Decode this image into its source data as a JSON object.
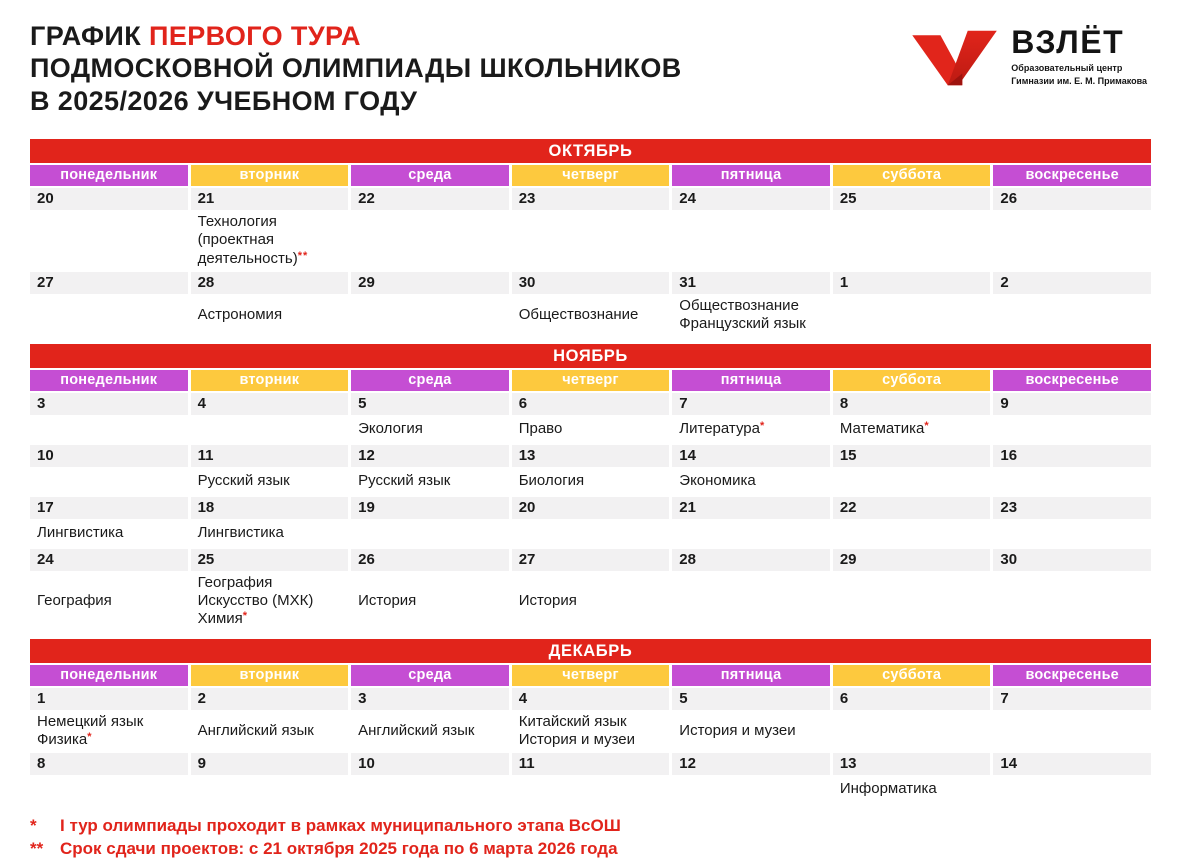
{
  "header": {
    "title_prefix": "ГРАФИК",
    "title_highlight": "ПЕРВОГО ТУРА",
    "title_line2": "ПОДМОСКОВНОЙ ОЛИМПИАДЫ ШКОЛЬНИКОВ",
    "title_line3": "В 2025/2026 УЧЕБНОМ ГОДУ"
  },
  "logo": {
    "mark_icon": "red-v-logo",
    "name": "ВЗЛЁТ",
    "subtitle_line1": "Образовательный центр",
    "subtitle_line2": "Гимназии им. Е. М. Примакова"
  },
  "colors": {
    "red": "#e1241b",
    "purple": "#c54ed3",
    "yellow": "#fdc93e",
    "grey": "#f2f1f2",
    "ink": "#1a1a1a"
  },
  "weekdays": [
    "понедельник",
    "вторник",
    "среда",
    "четверг",
    "пятница",
    "суббота",
    "воскресенье"
  ],
  "months": [
    {
      "name": "ОКТЯБРЬ",
      "weeks": [
        {
          "days": [
            {
              "date": "20",
              "subjects": []
            },
            {
              "date": "21",
              "subjects": [
                {
                  "text": "Технология (проектная деятельность)",
                  "mark": "**"
                }
              ]
            },
            {
              "date": "22",
              "subjects": []
            },
            {
              "date": "23",
              "subjects": []
            },
            {
              "date": "24",
              "subjects": []
            },
            {
              "date": "25",
              "subjects": []
            },
            {
              "date": "26",
              "subjects": []
            }
          ]
        },
        {
          "days": [
            {
              "date": "27",
              "subjects": []
            },
            {
              "date": "28",
              "subjects": [
                {
                  "text": "Астрономия"
                }
              ]
            },
            {
              "date": "29",
              "subjects": []
            },
            {
              "date": "30",
              "subjects": [
                {
                  "text": "Обществознание"
                }
              ]
            },
            {
              "date": "31",
              "subjects": [
                {
                  "text": "Обществознание"
                },
                {
                  "text": "Французский язык"
                }
              ]
            },
            {
              "date": "1",
              "subjects": []
            },
            {
              "date": "2",
              "subjects": []
            }
          ]
        }
      ]
    },
    {
      "name": "НОЯБРЬ",
      "weeks": [
        {
          "days": [
            {
              "date": "3",
              "subjects": []
            },
            {
              "date": "4",
              "subjects": []
            },
            {
              "date": "5",
              "subjects": [
                {
                  "text": "Экология"
                }
              ]
            },
            {
              "date": "6",
              "subjects": [
                {
                  "text": "Право"
                }
              ]
            },
            {
              "date": "7",
              "subjects": [
                {
                  "text": "Литература",
                  "mark": "*"
                }
              ]
            },
            {
              "date": "8",
              "subjects": [
                {
                  "text": "Математика",
                  "mark": "*"
                }
              ]
            },
            {
              "date": "9",
              "subjects": []
            }
          ]
        },
        {
          "days": [
            {
              "date": "10",
              "subjects": []
            },
            {
              "date": "11",
              "subjects": [
                {
                  "text": "Русский язык"
                }
              ]
            },
            {
              "date": "12",
              "subjects": [
                {
                  "text": "Русский язык"
                }
              ]
            },
            {
              "date": "13",
              "subjects": [
                {
                  "text": "Биология"
                }
              ]
            },
            {
              "date": "14",
              "subjects": [
                {
                  "text": "Экономика"
                }
              ]
            },
            {
              "date": "15",
              "subjects": []
            },
            {
              "date": "16",
              "subjects": []
            }
          ]
        },
        {
          "days": [
            {
              "date": "17",
              "subjects": [
                {
                  "text": "Лингвистика"
                }
              ]
            },
            {
              "date": "18",
              "subjects": [
                {
                  "text": "Лингвистика"
                }
              ]
            },
            {
              "date": "19",
              "subjects": []
            },
            {
              "date": "20",
              "subjects": []
            },
            {
              "date": "21",
              "subjects": []
            },
            {
              "date": "22",
              "subjects": []
            },
            {
              "date": "23",
              "subjects": []
            }
          ]
        },
        {
          "days": [
            {
              "date": "24",
              "subjects": [
                {
                  "text": "География"
                }
              ]
            },
            {
              "date": "25",
              "subjects": [
                {
                  "text": "География"
                },
                {
                  "text": "Искусство (МХК)"
                },
                {
                  "text": "Химия",
                  "mark": "*"
                }
              ]
            },
            {
              "date": "26",
              "subjects": [
                {
                  "text": "История"
                }
              ]
            },
            {
              "date": "27",
              "subjects": [
                {
                  "text": "История"
                }
              ]
            },
            {
              "date": "28",
              "subjects": []
            },
            {
              "date": "29",
              "subjects": []
            },
            {
              "date": "30",
              "subjects": []
            }
          ]
        }
      ]
    },
    {
      "name": "ДЕКАБРЬ",
      "weeks": [
        {
          "days": [
            {
              "date": "1",
              "subjects": [
                {
                  "text": "Немецкий язык"
                },
                {
                  "text": "Физика",
                  "mark": "*"
                }
              ]
            },
            {
              "date": "2",
              "subjects": [
                {
                  "text": "Английский язык"
                }
              ]
            },
            {
              "date": "3",
              "subjects": [
                {
                  "text": "Английский язык"
                }
              ]
            },
            {
              "date": "4",
              "subjects": [
                {
                  "text": "Китайский язык"
                },
                {
                  "text": "История и музеи"
                }
              ]
            },
            {
              "date": "5",
              "subjects": [
                {
                  "text": "История и музеи"
                }
              ]
            },
            {
              "date": "6",
              "subjects": []
            },
            {
              "date": "7",
              "subjects": []
            }
          ]
        },
        {
          "days": [
            {
              "date": "8",
              "subjects": []
            },
            {
              "date": "9",
              "subjects": []
            },
            {
              "date": "10",
              "subjects": []
            },
            {
              "date": "11",
              "subjects": []
            },
            {
              "date": "12",
              "subjects": []
            },
            {
              "date": "13",
              "subjects": [
                {
                  "text": "Информатика"
                }
              ]
            },
            {
              "date": "14",
              "subjects": []
            }
          ]
        }
      ]
    }
  ],
  "footnotes": [
    {
      "marker": "*",
      "text": "I тур олимпиады проходит в рамках муниципального этапа ВсОШ"
    },
    {
      "marker": "**",
      "text": "Срок сдачи проектов: с 21 октября 2025 года по 6 марта 2026 года"
    }
  ]
}
